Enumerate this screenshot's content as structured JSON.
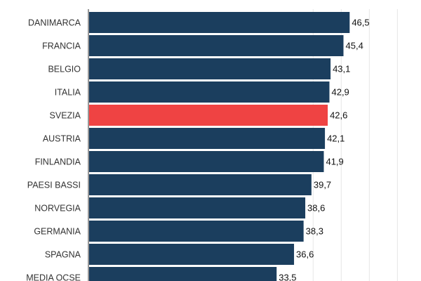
{
  "chart_data": {
    "type": "bar",
    "orientation": "horizontal",
    "categories": [
      "DANIMARCA",
      "FRANCIA",
      "BELGIO",
      "ITALIA",
      "SVEZIA",
      "AUSTRIA",
      "FINLANDIA",
      "PAESI BASSI",
      "NORVEGIA",
      "GERMANIA",
      "SPAGNA",
      "MEDIA OCSE"
    ],
    "values": [
      46.5,
      45.4,
      43.1,
      42.9,
      42.6,
      42.1,
      41.9,
      39.7,
      38.6,
      38.3,
      36.6,
      33.5
    ],
    "value_labels": [
      "46,5",
      "45,4",
      "43,1",
      "42,9",
      "42,6",
      "42,1",
      "41,9",
      "39,7",
      "38,6",
      "38,3",
      "36,6",
      "33,5"
    ],
    "highlight": "SVEZIA",
    "xlim": [
      0,
      59.2
    ],
    "grid": true,
    "grid_step": 5,
    "colors": {
      "bar": "#1b3e5e",
      "highlight": "#ef4343",
      "grid": "#e6e6e6",
      "axis": "#777777"
    }
  }
}
